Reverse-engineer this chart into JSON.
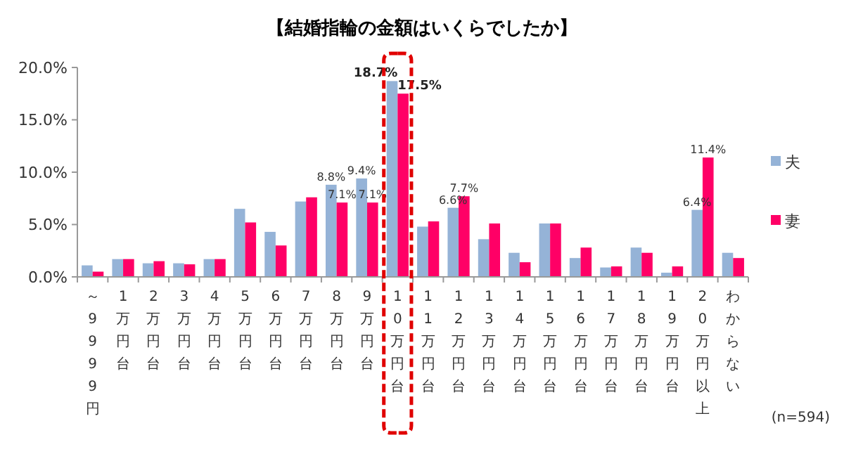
{
  "chart_data": {
    "type": "bar",
    "title": "【結婚指輪の金額はいくらでしたか】",
    "categories": [
      "～9999円",
      "1万円台",
      "2万円台",
      "3万円台",
      "4万円台",
      "5万円台",
      "6万円台",
      "7万円台",
      "8万円台",
      "9万円台",
      "10万円台",
      "11万円台",
      "12万円台",
      "13万円台",
      "14万円台",
      "15万円台",
      "16万円台",
      "17万円台",
      "18万円台",
      "19万円台",
      "20万円以上",
      "わからない"
    ],
    "series": [
      {
        "name": "夫",
        "color": "#95b3d7",
        "values": [
          1.1,
          1.7,
          1.3,
          1.3,
          1.7,
          6.5,
          4.3,
          7.2,
          8.8,
          9.4,
          18.7,
          4.8,
          6.6,
          3.6,
          2.3,
          5.1,
          1.8,
          0.9,
          2.8,
          0.4,
          6.4,
          2.3
        ],
        "value_labels": [
          null,
          null,
          null,
          null,
          null,
          null,
          null,
          null,
          "8.8%",
          "9.4%",
          "18.7%",
          null,
          "6.6%",
          null,
          null,
          null,
          null,
          null,
          null,
          null,
          "6.4%",
          null
        ]
      },
      {
        "name": "妻",
        "color": "#ff0066",
        "values": [
          0.5,
          1.7,
          1.5,
          1.2,
          1.7,
          5.2,
          3.0,
          7.6,
          7.1,
          7.1,
          17.5,
          5.3,
          7.7,
          5.1,
          1.4,
          5.1,
          2.8,
          1.0,
          2.3,
          1.0,
          11.4,
          1.8
        ],
        "value_labels": [
          null,
          null,
          null,
          null,
          null,
          null,
          null,
          null,
          "7.1%",
          "7.1%",
          "17.5%",
          null,
          "7.7%",
          null,
          null,
          null,
          null,
          null,
          null,
          null,
          "11.4%",
          null
        ]
      }
    ],
    "ylim": [
      0,
      20
    ],
    "yticks": [
      {
        "value": 0,
        "label": "0.0%"
      },
      {
        "value": 5,
        "label": "5.0%"
      },
      {
        "value": 10,
        "label": "10.0%"
      },
      {
        "value": 15,
        "label": "15.0%"
      },
      {
        "value": 20,
        "label": "20.0%"
      }
    ],
    "legend": "right",
    "annotations": [
      "(n=594)"
    ]
  }
}
